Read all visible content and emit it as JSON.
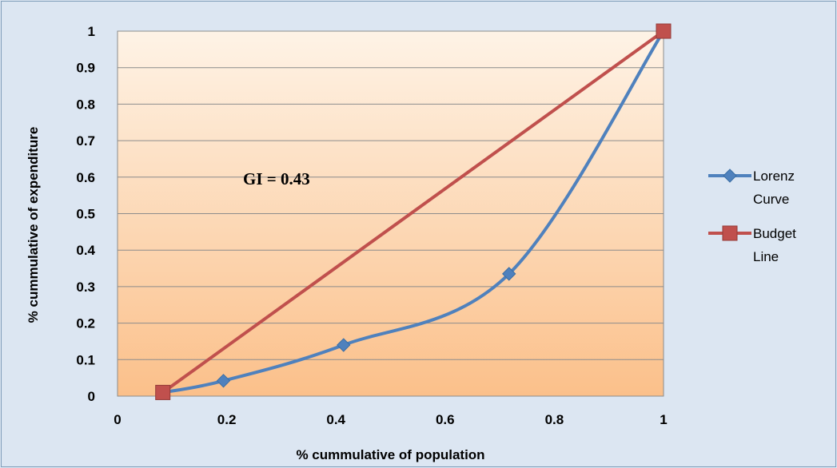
{
  "chart_data": {
    "type": "line",
    "title": "",
    "xlabel": "% cummulative of population",
    "ylabel": "% cummulative of expenditure",
    "xlim": [
      0,
      1
    ],
    "ylim": [
      0,
      1
    ],
    "x_ticks": [
      "0",
      "0.2",
      "0.4",
      "0.6",
      "0.8",
      "1"
    ],
    "y_ticks": [
      "0",
      "0.1",
      "0.2",
      "0.3",
      "0.4",
      "0.5",
      "0.6",
      "0.7",
      "0.8",
      "0.9",
      "1"
    ],
    "grid": "horizontal",
    "legend_position": "right",
    "annotation": "GI = 0.43",
    "series": [
      {
        "name": "Lorenz Curve",
        "legend_lines": [
          "Lorenz",
          "Curve"
        ],
        "color": "#4f81bd",
        "marker": "diamond",
        "smooth": true,
        "x": [
          0.083,
          0.194,
          0.414,
          0.717,
          1.0
        ],
        "y": [
          0.01,
          0.042,
          0.14,
          0.335,
          1.0
        ]
      },
      {
        "name": "Budget Line",
        "legend_lines": [
          "Budget",
          "Line"
        ],
        "color": "#c0504d",
        "marker": "square",
        "smooth": false,
        "x": [
          0.083,
          1.0
        ],
        "y": [
          0.01,
          1.0
        ]
      }
    ]
  }
}
